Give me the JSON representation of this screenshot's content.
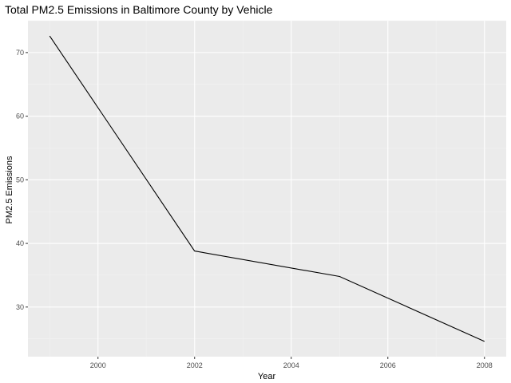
{
  "chart_data": {
    "type": "line",
    "title": "Total PM2.5 Emissions in Baltimore County by Vehicle",
    "xlabel": "Year",
    "ylabel": "PM2.5 Emissions",
    "x": [
      1999,
      2002,
      2005,
      2008
    ],
    "series": [
      {
        "values": [
          72.6,
          38.8,
          34.8,
          24.6
        ]
      }
    ],
    "xlim": [
      1998.55,
      2008.45
    ],
    "ylim": [
      22.2,
      75.0
    ],
    "x_ticks": [
      2000,
      2002,
      2004,
      2006,
      2008
    ],
    "x_tick_labels": [
      "2000",
      "2002",
      "2004",
      "2006",
      "2008"
    ],
    "y_ticks": [
      30,
      40,
      50,
      60,
      70
    ],
    "y_tick_labels": [
      "30",
      "40",
      "50",
      "60",
      "70"
    ],
    "grid": true,
    "panel_color": "#ebebeb",
    "grid_color": "#ffffff",
    "line_color": "#000000"
  }
}
